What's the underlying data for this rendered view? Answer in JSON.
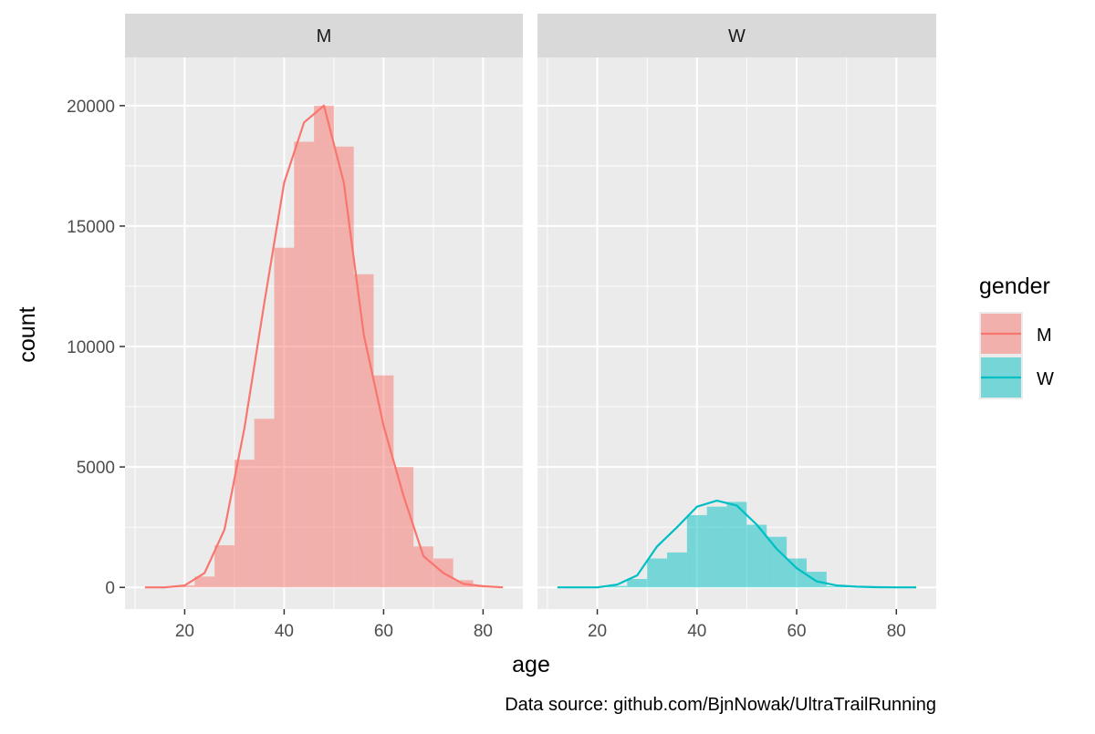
{
  "chart_data": {
    "type": "bar",
    "facets": [
      {
        "label": "M",
        "color": "#F8766D",
        "bins": [
          {
            "x": 20,
            "count": 80
          },
          {
            "x": 24,
            "count": 450
          },
          {
            "x": 28,
            "count": 1750
          },
          {
            "x": 32,
            "count": 5300
          },
          {
            "x": 36,
            "count": 7000
          },
          {
            "x": 40,
            "count": 14100
          },
          {
            "x": 44,
            "count": 18500
          },
          {
            "x": 48,
            "count": 20000
          },
          {
            "x": 52,
            "count": 18300
          },
          {
            "x": 56,
            "count": 13000
          },
          {
            "x": 60,
            "count": 8800
          },
          {
            "x": 64,
            "count": 5000
          },
          {
            "x": 68,
            "count": 1700
          },
          {
            "x": 72,
            "count": 1200
          },
          {
            "x": 76,
            "count": 300
          },
          {
            "x": 80,
            "count": 40
          }
        ],
        "line": [
          {
            "x": 12,
            "y": 0
          },
          {
            "x": 16,
            "y": 0
          },
          {
            "x": 20,
            "y": 80
          },
          {
            "x": 24,
            "y": 600
          },
          {
            "x": 28,
            "y": 2400
          },
          {
            "x": 32,
            "y": 6600
          },
          {
            "x": 36,
            "y": 11800
          },
          {
            "x": 40,
            "y": 16800
          },
          {
            "x": 44,
            "y": 19300
          },
          {
            "x": 48,
            "y": 20000
          },
          {
            "x": 52,
            "y": 16800
          },
          {
            "x": 56,
            "y": 10500
          },
          {
            "x": 60,
            "y": 6700
          },
          {
            "x": 64,
            "y": 3800
          },
          {
            "x": 68,
            "y": 1300
          },
          {
            "x": 72,
            "y": 600
          },
          {
            "x": 76,
            "y": 150
          },
          {
            "x": 80,
            "y": 50
          },
          {
            "x": 84,
            "y": 0
          }
        ]
      },
      {
        "label": "W",
        "color": "#00BFC4",
        "bins": [
          {
            "x": 24,
            "count": 60
          },
          {
            "x": 28,
            "count": 350
          },
          {
            "x": 32,
            "count": 1200
          },
          {
            "x": 36,
            "count": 1450
          },
          {
            "x": 40,
            "count": 3000
          },
          {
            "x": 44,
            "count": 3350
          },
          {
            "x": 48,
            "count": 3550
          },
          {
            "x": 52,
            "count": 2600
          },
          {
            "x": 56,
            "count": 2100
          },
          {
            "x": 60,
            "count": 1200
          },
          {
            "x": 64,
            "count": 650
          },
          {
            "x": 68,
            "count": 50
          }
        ],
        "line": [
          {
            "x": 12,
            "y": 0
          },
          {
            "x": 16,
            "y": 0
          },
          {
            "x": 20,
            "y": 0
          },
          {
            "x": 24,
            "y": 120
          },
          {
            "x": 28,
            "y": 500
          },
          {
            "x": 32,
            "y": 1700
          },
          {
            "x": 36,
            "y": 2500
          },
          {
            "x": 40,
            "y": 3350
          },
          {
            "x": 44,
            "y": 3600
          },
          {
            "x": 48,
            "y": 3400
          },
          {
            "x": 52,
            "y": 2600
          },
          {
            "x": 56,
            "y": 1600
          },
          {
            "x": 60,
            "y": 800
          },
          {
            "x": 64,
            "y": 250
          },
          {
            "x": 68,
            "y": 80
          },
          {
            "x": 72,
            "y": 30
          },
          {
            "x": 76,
            "y": 10
          },
          {
            "x": 80,
            "y": 0
          },
          {
            "x": 84,
            "y": 0
          }
        ]
      }
    ],
    "bin_width": 4,
    "xlabel": "age",
    "ylabel": "count",
    "xlim": [
      8,
      88
    ],
    "ylim": [
      -900,
      22000
    ],
    "xticks": [
      20,
      40,
      60,
      80
    ],
    "yticks": [
      0,
      5000,
      10000,
      15000,
      20000
    ],
    "grid": true,
    "legend": {
      "title": "gender",
      "position": "right",
      "entries": [
        {
          "label": "M",
          "color": "#F8766D"
        },
        {
          "label": "W",
          "color": "#00BFC4"
        }
      ]
    },
    "caption": "Data source: github.com/BjnNowak/UltraTrailRunning"
  }
}
